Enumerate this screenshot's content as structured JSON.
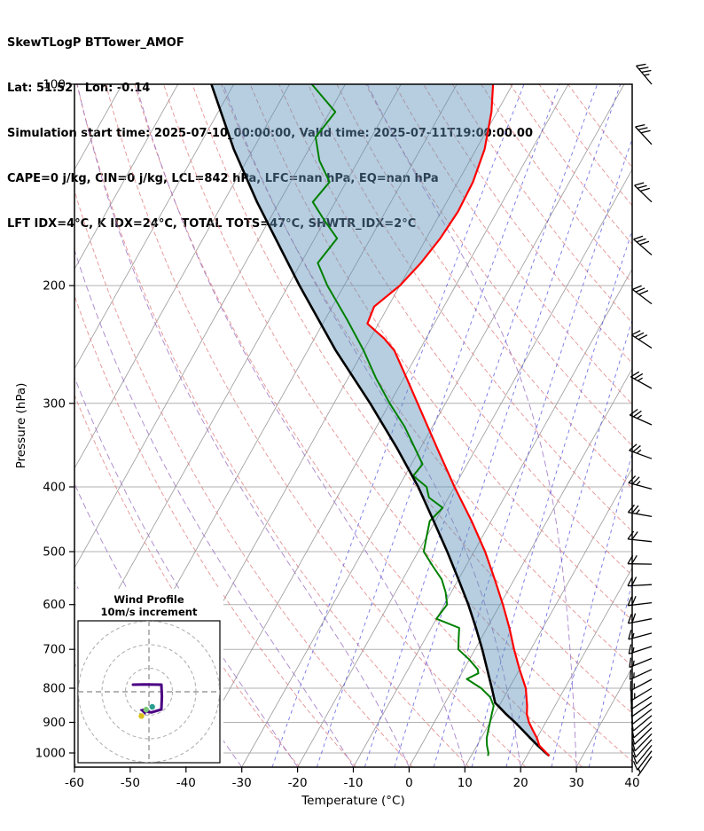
{
  "header": {
    "line1": "SkewTLogP BTTower_AMOF",
    "line2": "Lat: 51.52   Lon: -0.14",
    "line3": "Simulation start time: 2025-07-10_00:00:00, Valid time: 2025-07-11T19:00:00.00",
    "line4": "CAPE=0 j/kg, CIN=0 j/kg, LCL=842 hPa, LFC=nan hPa, EQ=nan hPa",
    "line5": "LFT IDX=4°C, K IDX=24°C, TOTAL TOTS=47°C, SHWTR_IDX=2°C"
  },
  "chart_data": {
    "type": "skewt-logp",
    "title": "SkewTLogP BTTower_AMOF",
    "station_lat": 51.52,
    "station_lon": -0.14,
    "xlabel": "Temperature (°C)",
    "ylabel": "Pressure (hPa)",
    "x_ticks": [
      -60,
      -50,
      -40,
      -30,
      -20,
      -10,
      0,
      10,
      20,
      30,
      40
    ],
    "y_ticks": [
      100,
      200,
      300,
      400,
      500,
      600,
      700,
      800,
      900,
      1000
    ],
    "temp_range_c": [
      -60,
      40
    ],
    "pressure_range_hpa": [
      100,
      1050
    ],
    "lcl_hpa": 842,
    "isotherms_c": {
      "start": -160,
      "end": 40,
      "step": 10
    },
    "dry_adiabats_k": {
      "start": 250,
      "end": 450,
      "step": 10
    },
    "moist_adiabats_start_c": [
      -40,
      -30,
      -20,
      -10,
      0,
      10,
      20,
      30
    ],
    "mixing_ratios_g_kg": [
      0.5,
      1,
      2,
      3,
      5,
      8,
      12,
      20,
      30
    ],
    "temperature_profile_p_c": [
      [
        1010,
        24
      ],
      [
        1000,
        23.2
      ],
      [
        975,
        21.2
      ],
      [
        950,
        20
      ],
      [
        925,
        18.5
      ],
      [
        900,
        17
      ],
      [
        875,
        15.8
      ],
      [
        850,
        15
      ],
      [
        800,
        13
      ],
      [
        750,
        10
      ],
      [
        700,
        7
      ],
      [
        650,
        4
      ],
      [
        600,
        0.5
      ],
      [
        550,
        -3.5
      ],
      [
        500,
        -8
      ],
      [
        450,
        -13.5
      ],
      [
        400,
        -20
      ],
      [
        350,
        -27
      ],
      [
        300,
        -35
      ],
      [
        275,
        -39.5
      ],
      [
        250,
        -44.5
      ],
      [
        240,
        -47.5
      ],
      [
        228,
        -52
      ],
      [
        215,
        -52.5
      ],
      [
        200,
        -50
      ],
      [
        185,
        -48.5
      ],
      [
        170,
        -47.5
      ],
      [
        155,
        -47
      ],
      [
        140,
        -47.3
      ],
      [
        125,
        -48.5
      ],
      [
        110,
        -51
      ],
      [
        100,
        -53.5
      ]
    ],
    "dewpoint_profile_p_c": [
      [
        1010,
        13
      ],
      [
        1000,
        12.8
      ],
      [
        975,
        11.8
      ],
      [
        950,
        11
      ],
      [
        925,
        10.5
      ],
      [
        900,
        10
      ],
      [
        875,
        9.5
      ],
      [
        850,
        9
      ],
      [
        825,
        7.5
      ],
      [
        800,
        5
      ],
      [
        775,
        1.5
      ],
      [
        760,
        3
      ],
      [
        750,
        2.5
      ],
      [
        725,
        0
      ],
      [
        700,
        -3
      ],
      [
        675,
        -4
      ],
      [
        650,
        -5
      ],
      [
        630,
        -10
      ],
      [
        600,
        -9.5
      ],
      [
        575,
        -11
      ],
      [
        550,
        -13
      ],
      [
        525,
        -16
      ],
      [
        500,
        -19
      ],
      [
        475,
        -20
      ],
      [
        450,
        -21
      ],
      [
        430,
        -20
      ],
      [
        415,
        -23.5
      ],
      [
        400,
        -25
      ],
      [
        385,
        -28.5
      ],
      [
        370,
        -28
      ],
      [
        350,
        -31
      ],
      [
        325,
        -35
      ],
      [
        300,
        -40
      ],
      [
        275,
        -45
      ],
      [
        250,
        -50
      ],
      [
        225,
        -56
      ],
      [
        200,
        -63
      ],
      [
        185,
        -67
      ],
      [
        170,
        -66
      ],
      [
        160,
        -70
      ],
      [
        150,
        -74
      ],
      [
        140,
        -73
      ],
      [
        130,
        -77
      ],
      [
        120,
        -80
      ],
      [
        110,
        -79
      ],
      [
        100,
        -86
      ]
    ],
    "parcel_profile_p_c": [
      [
        1010,
        24
      ],
      [
        1000,
        23.1
      ],
      [
        975,
        20.9
      ],
      [
        950,
        18.8
      ],
      [
        925,
        16.7
      ],
      [
        900,
        14.5
      ],
      [
        875,
        12.1
      ],
      [
        850,
        9.8
      ],
      [
        842,
        9
      ],
      [
        800,
        6.9
      ],
      [
        750,
        4.2
      ],
      [
        700,
        1.3
      ],
      [
        650,
        -2
      ],
      [
        600,
        -5.7
      ],
      [
        550,
        -10
      ],
      [
        500,
        -14.8
      ],
      [
        450,
        -20.3
      ],
      [
        400,
        -26.5
      ],
      [
        350,
        -34.2
      ],
      [
        300,
        -43.5
      ],
      [
        250,
        -55
      ],
      [
        200,
        -68
      ],
      [
        150,
        -84
      ],
      [
        125,
        -93.5
      ],
      [
        100,
        -104
      ]
    ],
    "wind_barbs_p_ms_deg": [
      [
        1012,
        7,
        215
      ],
      [
        993,
        8,
        217
      ],
      [
        974,
        8,
        219
      ],
      [
        955,
        9,
        222
      ],
      [
        936,
        9,
        224
      ],
      [
        917,
        10,
        226
      ],
      [
        898,
        10,
        228
      ],
      [
        879,
        11,
        230
      ],
      [
        860,
        11,
        232
      ],
      [
        841,
        12,
        235
      ],
      [
        822,
        12,
        237
      ],
      [
        800,
        13,
        239
      ],
      [
        776,
        14,
        242
      ],
      [
        750,
        14,
        245
      ],
      [
        722,
        15,
        248
      ],
      [
        693,
        16,
        252
      ],
      [
        662,
        17,
        255
      ],
      [
        630,
        18,
        259
      ],
      [
        596,
        19,
        263
      ],
      [
        560,
        20,
        267
      ],
      [
        522,
        21,
        271
      ],
      [
        483,
        22,
        276
      ],
      [
        443,
        23,
        280
      ],
      [
        403,
        24,
        285
      ],
      [
        363,
        25,
        290
      ],
      [
        323,
        26,
        294
      ],
      [
        285,
        27,
        299
      ],
      [
        248,
        28,
        303
      ],
      [
        213,
        29,
        307
      ],
      [
        180,
        30,
        311
      ],
      [
        150,
        31,
        314
      ],
      [
        123,
        32,
        317
      ],
      [
        100,
        33,
        320
      ]
    ],
    "hodograph": {
      "title_line1": "Wind Profile",
      "title_line2": "10m/s increment",
      "ring_interval_ms": 10,
      "rings_ms": [
        10,
        20,
        30
      ],
      "trace_color": "#4b0082",
      "trace_uv_ms": [
        [
          -6.8,
          3
        ],
        [
          -2,
          3.1
        ],
        [
          5.3,
          3
        ],
        [
          5.5,
          -2
        ],
        [
          5.3,
          -7.5
        ],
        [
          1,
          -8.8
        ],
        [
          -1.1,
          -8.3
        ]
      ],
      "markers": [
        {
          "color": "#d9c21a",
          "uv_ms": [
            -3.2,
            -10.3
          ]
        },
        {
          "color": "#2a9d8f",
          "uv_ms": [
            1.4,
            -6.4
          ]
        },
        {
          "color": "#7bc87b",
          "uv_ms": [
            -1.2,
            -7.6
          ]
        }
      ]
    },
    "colors": {
      "temperature": "#ff0000",
      "dewpoint": "#008000",
      "parcel": "#000000",
      "shading": "rgba(93,146,185,0.45)",
      "isotherm": "#999999",
      "dry_adiabat": "#e07f7f",
      "moist_adiabat": "#9467bd",
      "mixing_ratio": "#4646dd",
      "grid": "#b0b0b0",
      "barb": "#000000"
    }
  }
}
